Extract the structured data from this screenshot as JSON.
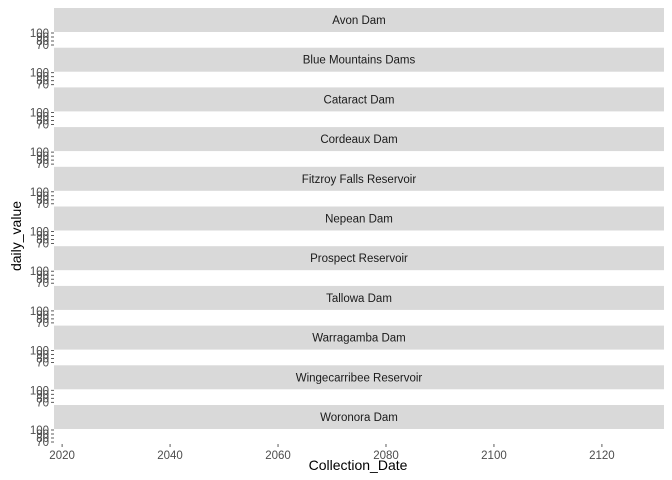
{
  "chart_data": {
    "type": "line",
    "xlabel": "Collection_Date",
    "ylabel": "daily_value",
    "x_ticks": [
      "2020",
      "2040",
      "2060",
      "2080",
      "2100",
      "2120"
    ],
    "x_tick_values": [
      2020,
      2040,
      2060,
      2080,
      2100,
      2120
    ],
    "xlim": [
      2018.5,
      2131.5
    ],
    "y_ticks": [
      "70",
      "80",
      "90",
      "100"
    ],
    "y_tick_values": [
      70,
      80,
      90,
      100
    ],
    "ylim": [
      70,
      100
    ],
    "grid": false,
    "facets": [
      "Avon Dam",
      "Blue Mountains Dams",
      "Cataract Dam",
      "Cordeaux Dam",
      "Fitzroy Falls Reservoir",
      "Nepean Dam",
      "Prospect Reservoir",
      "Tallowa Dam",
      "Warragamba Dam",
      "Wingecarribee Reservoir",
      "Woronora Dam"
    ],
    "colors": {
      "strip_fill": "#d9d9d9",
      "tick": "#333333",
      "tick_text": "#4d4d4d"
    }
  }
}
